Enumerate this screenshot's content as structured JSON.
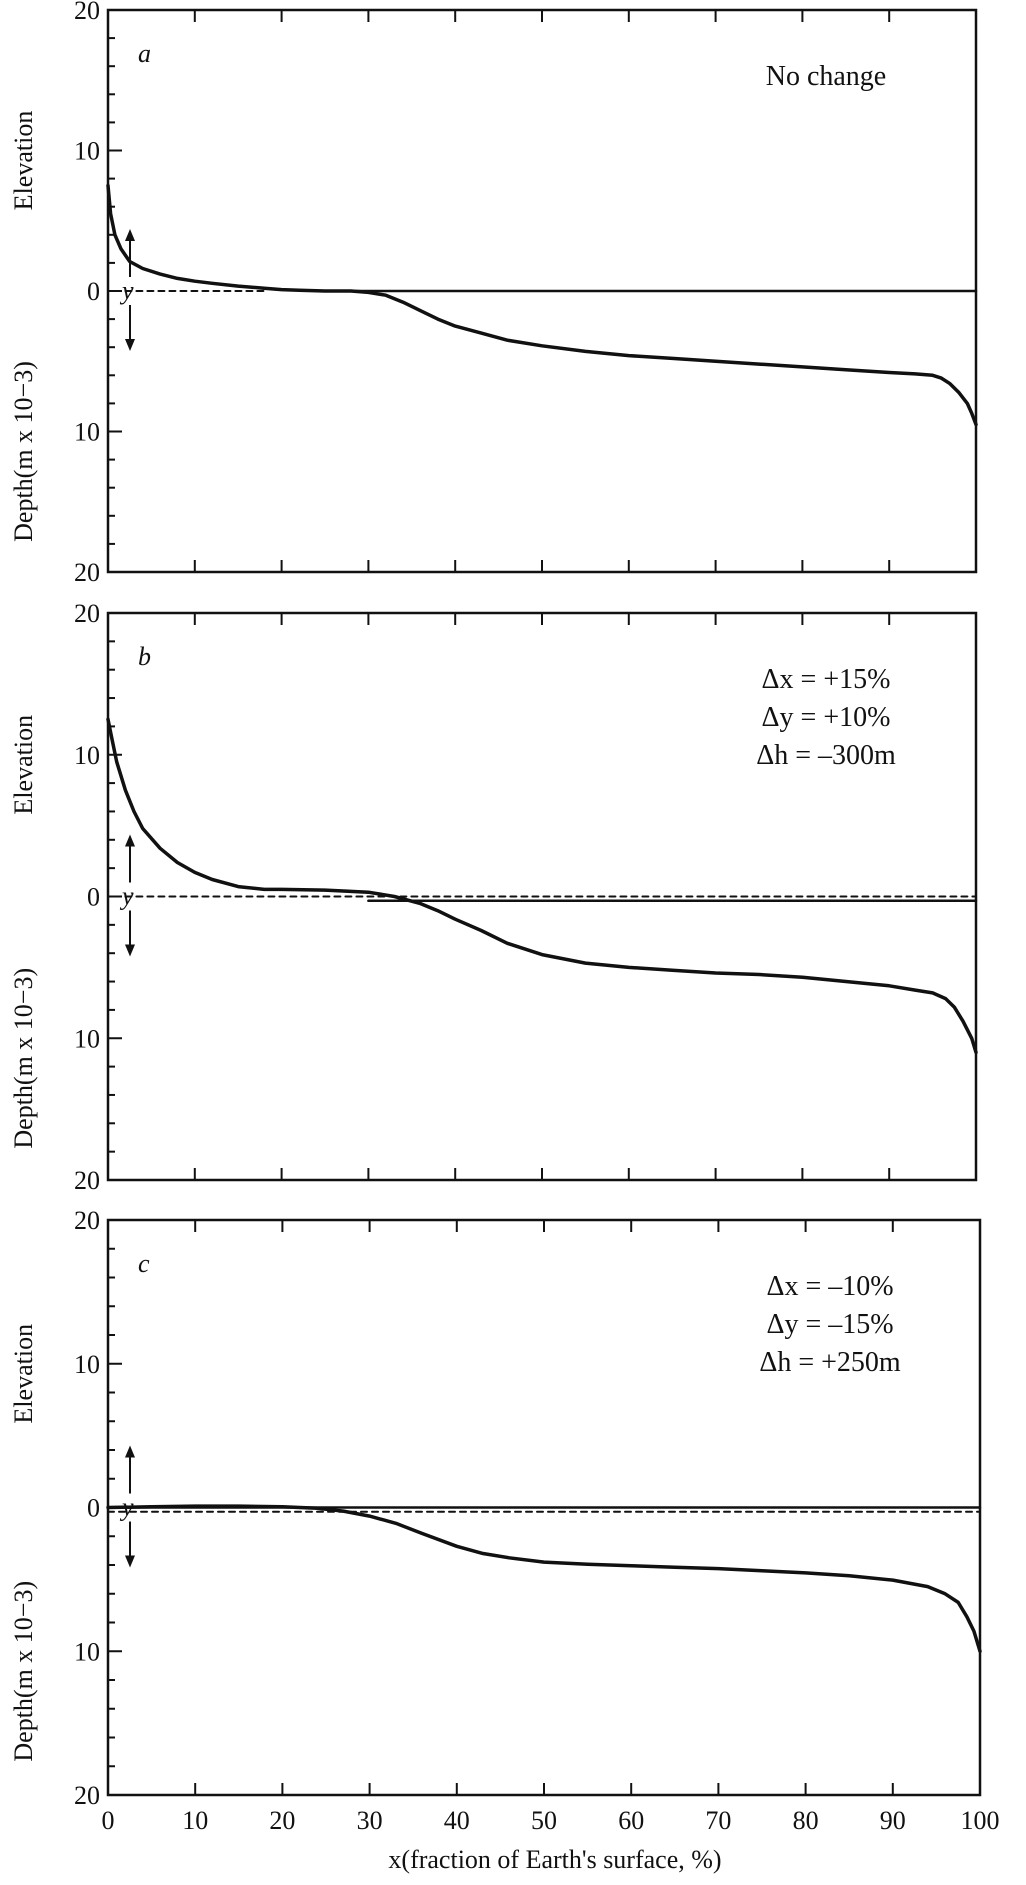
{
  "figure": {
    "xlabel": "x(fraction of Earth's surface, %)",
    "x_ticks": [
      "0",
      "10",
      "20",
      "30",
      "40",
      "50",
      "60",
      "70",
      "80",
      "90",
      "100"
    ],
    "y_ticks": [
      "20",
      "10",
      "0",
      "10",
      "20"
    ],
    "ylabel_elevation": "Elevation",
    "ylabel_depth": "Depth(m x 10−3)",
    "y_marker": "y"
  },
  "chart_data": [
    {
      "type": "line",
      "panel": "a",
      "annotations": [
        "No change"
      ],
      "xlabel": "x(fraction of Earth's surface, %)",
      "ylabel": "Elevation / Depth(m x 10−3)",
      "xlim": [
        0,
        100
      ],
      "ylim": [
        -20,
        20
      ],
      "grid": false,
      "series": [
        {
          "style": "solid",
          "x": [
            0,
            0.3,
            0.8,
            1.5,
            2.5,
            4,
            6,
            8,
            10,
            12,
            15,
            18,
            20,
            22,
            25,
            28,
            30,
            32,
            34,
            36,
            38,
            40,
            43,
            46,
            50,
            55,
            60,
            65,
            70,
            75,
            80,
            85,
            90,
            93,
            95,
            96,
            97,
            98,
            99,
            99.5,
            100
          ],
          "y": [
            7.5,
            5.5,
            4,
            3,
            2.1,
            1.6,
            1.2,
            0.9,
            0.7,
            0.55,
            0.35,
            0.2,
            0.1,
            0.05,
            0,
            0,
            -0.1,
            -0.3,
            -0.8,
            -1.4,
            -2,
            -2.5,
            -3,
            -3.5,
            -3.9,
            -4.3,
            -4.6,
            -4.8,
            -5,
            -5.2,
            -5.4,
            -5.6,
            -5.8,
            -5.9,
            -6,
            -6.2,
            -6.6,
            -7.2,
            -8,
            -8.7,
            -9.5
          ]
        },
        {
          "style": "solid",
          "x": [
            26,
            100
          ],
          "y": [
            0,
            0
          ]
        },
        {
          "style": "dashed",
          "x": [
            2,
            18
          ],
          "y": [
            0,
            0
          ]
        }
      ]
    },
    {
      "type": "line",
      "panel": "b",
      "annotations": [
        "Δx = +15%",
        "Δy = +10%",
        "Δh = –300m"
      ],
      "xlabel": "x(fraction of Earth's surface, %)",
      "ylabel": "Elevation / Depth(m x 10−3)",
      "xlim": [
        0,
        100
      ],
      "ylim": [
        -20,
        20
      ],
      "grid": false,
      "series": [
        {
          "style": "solid",
          "x": [
            0,
            0.5,
            1,
            2,
            3,
            4,
            6,
            8,
            10,
            12,
            15,
            18,
            20,
            25,
            30,
            33,
            36,
            38,
            40,
            43,
            46,
            50,
            55,
            60,
            65,
            70,
            75,
            80,
            85,
            90,
            93,
            95,
            96.5,
            97.5,
            98.5,
            99.5,
            100
          ],
          "y": [
            12.5,
            11,
            9.5,
            7.5,
            6,
            4.8,
            3.4,
            2.4,
            1.7,
            1.2,
            0.7,
            0.5,
            0.5,
            0.45,
            0.3,
            0,
            -0.5,
            -1,
            -1.6,
            -2.4,
            -3.3,
            -4.1,
            -4.7,
            -5,
            -5.2,
            -5.4,
            -5.5,
            -5.7,
            -6,
            -6.3,
            -6.6,
            -6.8,
            -7.2,
            -7.8,
            -8.8,
            -10,
            -11
          ]
        },
        {
          "style": "solid",
          "x": [
            30,
            100
          ],
          "y": [
            -0.3,
            -0.3
          ]
        },
        {
          "style": "dashed",
          "x": [
            2,
            100
          ],
          "y": [
            0,
            0
          ]
        }
      ]
    },
    {
      "type": "line",
      "panel": "c",
      "annotations": [
        "Δx = –10%",
        "Δy = –15%",
        "Δh = +250m"
      ],
      "xlabel": "x(fraction of Earth's surface, %)",
      "ylabel": "Elevation / Depth(m x 10−3)",
      "xlim": [
        0,
        100
      ],
      "ylim": [
        -20,
        20
      ],
      "grid": false,
      "series": [
        {
          "style": "solid",
          "x": [
            0,
            5,
            10,
            15,
            20,
            24,
            27,
            30,
            33,
            36,
            40,
            43,
            46,
            50,
            55,
            60,
            65,
            70,
            75,
            80,
            85,
            90,
            94,
            96,
            97.5,
            98.5,
            99.3,
            100
          ],
          "y": [
            0,
            0.05,
            0.1,
            0.1,
            0.05,
            -0.05,
            -0.25,
            -0.6,
            -1.1,
            -1.8,
            -2.7,
            -3.2,
            -3.5,
            -3.8,
            -3.95,
            -4.05,
            -4.15,
            -4.25,
            -4.4,
            -4.55,
            -4.75,
            -5.05,
            -5.5,
            -6,
            -6.6,
            -7.6,
            -8.6,
            -10
          ]
        },
        {
          "style": "solid",
          "x": [
            0,
            100
          ],
          "y": [
            0,
            0
          ]
        },
        {
          "style": "dashed",
          "x": [
            0,
            100
          ],
          "y": [
            -0.3,
            -0.3
          ]
        }
      ]
    }
  ]
}
